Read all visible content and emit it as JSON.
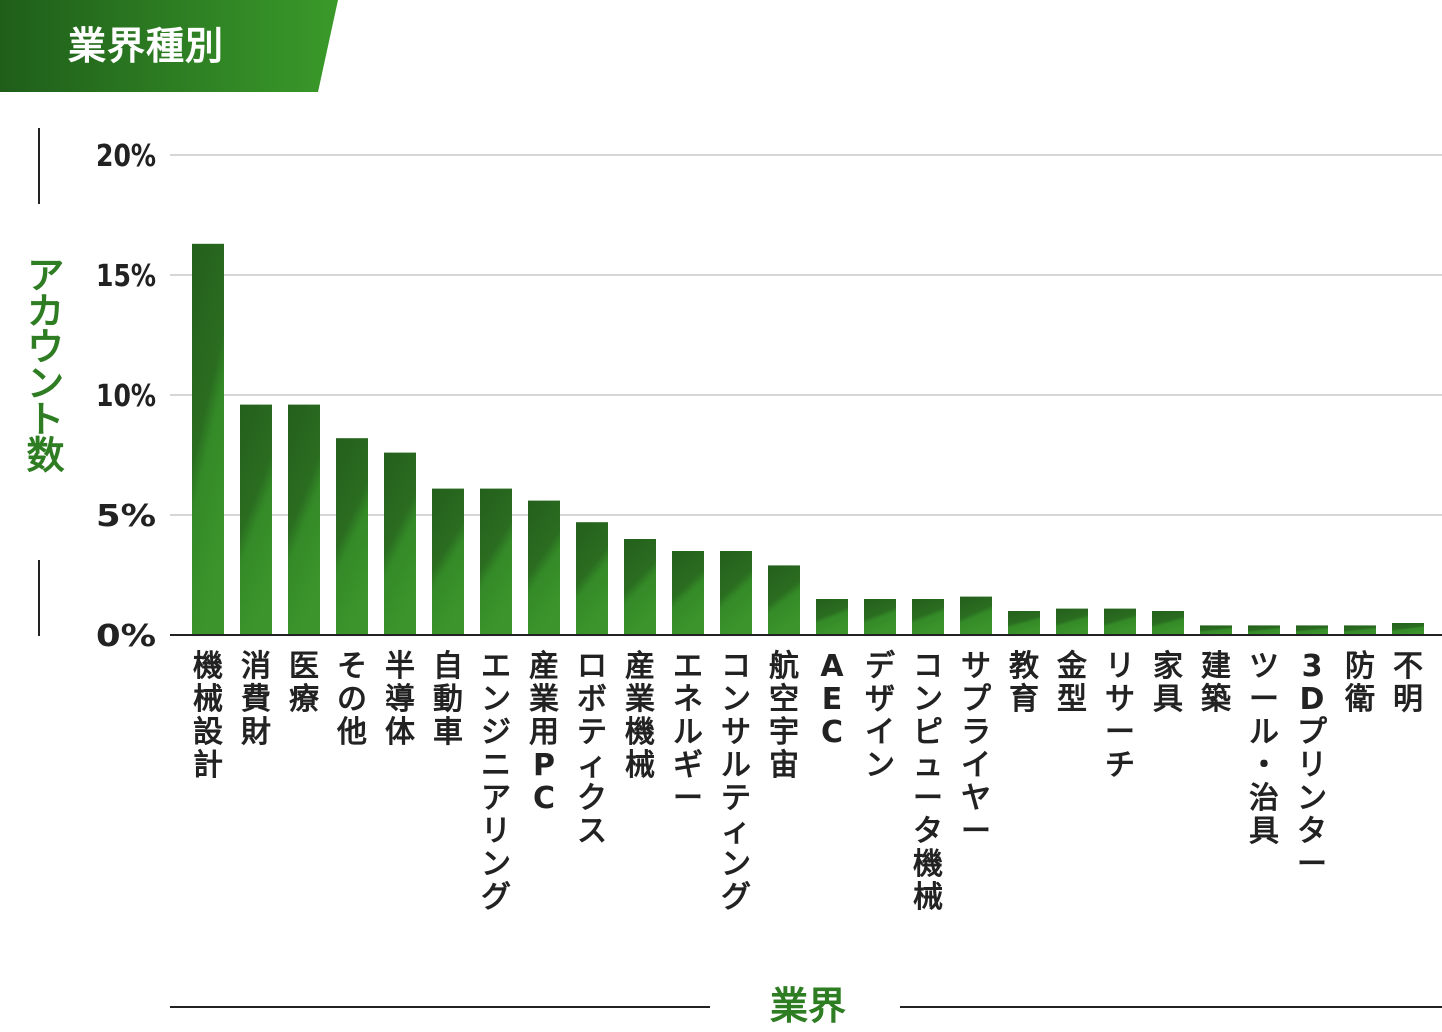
{
  "header": {
    "title": "業界種別"
  },
  "colors": {
    "banner_dark": "#1f5e1a",
    "banner_light": "#3a9a2a",
    "bar_dark": "#25621d",
    "bar_light": "#3a922b",
    "axis_label": "#2e7d22"
  },
  "chart_data": {
    "type": "bar",
    "title": "業界種別",
    "xlabel": "業界",
    "ylabel": "アカウント数",
    "ylim": [
      0,
      20
    ],
    "yticks": [
      "0%",
      "5%",
      "10%",
      "15%",
      "20%"
    ],
    "grid": true,
    "categories": [
      "機械設計",
      "消費財",
      "医療",
      "その他",
      "半導体",
      "自動車",
      "エンジニアリング",
      "産業用PC",
      "ロボティクス",
      "産業機械",
      "エネルギー",
      "コンサルティング",
      "航空宇宙",
      "AEC",
      "デザイン",
      "コンピュータ機械",
      "サプライヤー",
      "教育",
      "金型",
      "リサーチ",
      "家具",
      "建築",
      "ツール・治具",
      "3Dプリンター",
      "防衛",
      "不明"
    ],
    "values": [
      16.3,
      9.6,
      9.6,
      8.2,
      7.6,
      6.1,
      6.1,
      5.6,
      4.7,
      4.0,
      3.5,
      3.5,
      2.9,
      1.5,
      1.5,
      1.5,
      1.6,
      1.0,
      1.1,
      1.1,
      1.0,
      0.4,
      0.4,
      0.4,
      0.4,
      0.5
    ]
  }
}
